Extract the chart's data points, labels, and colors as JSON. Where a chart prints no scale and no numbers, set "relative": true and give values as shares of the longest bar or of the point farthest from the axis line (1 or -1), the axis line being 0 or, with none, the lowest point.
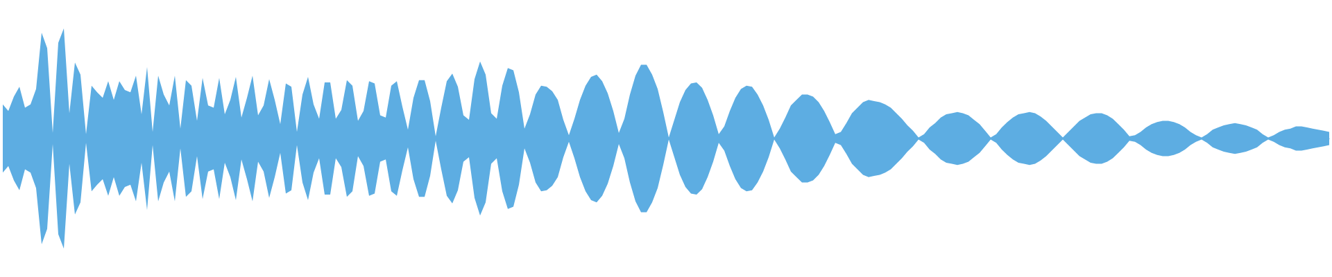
{
  "chart_data": {
    "type": "area",
    "relative": true,
    "categories": [
      null,
      null,
      null,
      null,
      null,
      null,
      null,
      null,
      null,
      null,
      null,
      null,
      null,
      null,
      null,
      null,
      null,
      null,
      null,
      null,
      null,
      null,
      null,
      null,
      null,
      null,
      null,
      null,
      null,
      null,
      null,
      null,
      null,
      null,
      null,
      null,
      null,
      null,
      null,
      null,
      null,
      null,
      null,
      null,
      null,
      null,
      null,
      null,
      null,
      null,
      null,
      null,
      null,
      null,
      null,
      null,
      null,
      null,
      null,
      null,
      null,
      null,
      null,
      null,
      null,
      null,
      null,
      null,
      null,
      null,
      null,
      null,
      null,
      null,
      null,
      null,
      null,
      null,
      null,
      null,
      null,
      null,
      null,
      null,
      null,
      null,
      null,
      null,
      null,
      null,
      null,
      null,
      null,
      null,
      null,
      null,
      null,
      null,
      null,
      null,
      null,
      null,
      null,
      null,
      null,
      null,
      null,
      null,
      null,
      null,
      null,
      null,
      null,
      null,
      null,
      null,
      null,
      null,
      null,
      null,
      null,
      null,
      null,
      null,
      null,
      null,
      null,
      null,
      null,
      null,
      null,
      null,
      null,
      null,
      null,
      null,
      null,
      null,
      null,
      null,
      null,
      null,
      null,
      null,
      null,
      null,
      null,
      null,
      null,
      null,
      null,
      null,
      null,
      null,
      null,
      null,
      null,
      null,
      null,
      null,
      null,
      null,
      null,
      null,
      null,
      null,
      null,
      null,
      null,
      null,
      null,
      null,
      null,
      null,
      null,
      null,
      null,
      null,
      null,
      null,
      null,
      null,
      null,
      null,
      null,
      null,
      null,
      null,
      null,
      null,
      null,
      null,
      null,
      null,
      null,
      null,
      null,
      null,
      null,
      null,
      null,
      null,
      null,
      null,
      null,
      null,
      null,
      null,
      null,
      null,
      null,
      null,
      null,
      null,
      null,
      null,
      null,
      null,
      null,
      null,
      null,
      null,
      null,
      null,
      null,
      null,
      null,
      null,
      null,
      null,
      null,
      null,
      null,
      null,
      null,
      null,
      null,
      null,
      null,
      null
    ],
    "series": [
      {
        "color": "#5dade2",
        "values": [
          0.31,
          0.25,
          0.38,
          0.47,
          0.28,
          0.31,
          0.45,
          0.96,
          0.82,
          0.05,
          0.87,
          1,
          0.23,
          0.69,
          0.58,
          0.04,
          0.48,
          0.42,
          0.37,
          0.52,
          0.35,
          0.52,
          0.44,
          0.42,
          0.57,
          0.22,
          0.65,
          0.06,
          0.57,
          0.4,
          0.3,
          0.57,
          0.09,
          0.53,
          0.48,
          0.16,
          0.55,
          0.3,
          0.28,
          0.55,
          0.22,
          0.35,
          0.56,
          0.19,
          0.37,
          0.57,
          0.21,
          0.3,
          0.54,
          0.35,
          0.13,
          0.5,
          0.47,
          0.06,
          0.4,
          0.56,
          0.31,
          0.18,
          0.51,
          0.51,
          0.18,
          0.26,
          0.53,
          0.48,
          0.16,
          0.25,
          0.52,
          0.5,
          0.21,
          0.19,
          0.48,
          0.52,
          0.29,
          0.08,
          0.37,
          0.53,
          0.53,
          0.34,
          0.02,
          0.28,
          0.52,
          0.59,
          0.47,
          0.21,
          0.17,
          0.54,
          0.7,
          0.58,
          0.23,
          0.18,
          0.48,
          0.64,
          0.62,
          0.42,
          0.09,
          0.22,
          0.4,
          0.48,
          0.47,
          0.43,
          0.35,
          0.17,
          0.03,
          0.18,
          0.35,
          0.48,
          0.56,
          0.58,
          0.52,
          0.41,
          0.25,
          0.05,
          0.18,
          0.4,
          0.57,
          0.67,
          0.67,
          0.58,
          0.45,
          0.24,
          0.01,
          0.17,
          0.33,
          0.44,
          0.5,
          0.51,
          0.46,
          0.35,
          0.21,
          0.04,
          0.11,
          0.25,
          0.37,
          0.45,
          0.48,
          0.47,
          0.4,
          0.3,
          0.17,
          0.01,
          0.09,
          0.19,
          0.3,
          0.35,
          0.4,
          0.4,
          0.38,
          0.33,
          0.25,
          0.15,
          0.04,
          0.06,
          0.14,
          0.23,
          0.28,
          0.33,
          0.35,
          0.34,
          0.33,
          0.31,
          0.28,
          0.23,
          0.18,
          0.12,
          0.07,
          0.01,
          0.04,
          0.1,
          0.14,
          0.19,
          0.22,
          0.23,
          0.24,
          0.23,
          0.21,
          0.17,
          0.13,
          0.07,
          0.01,
          0.04,
          0.1,
          0.15,
          0.19,
          0.22,
          0.23,
          0.24,
          0.23,
          0.2,
          0.16,
          0.11,
          0.06,
          0.01,
          0.06,
          0.11,
          0.16,
          0.19,
          0.22,
          0.23,
          0.23,
          0.21,
          0.18,
          0.13,
          0.08,
          0.02,
          0.03,
          0.06,
          0.1,
          0.13,
          0.15,
          0.16,
          0.16,
          0.15,
          0.13,
          0.1,
          0.06,
          0.03,
          0.01,
          0.04,
          0.08,
          0.1,
          0.12,
          0.13,
          0.14,
          0.13,
          0.12,
          0.1,
          0.08,
          0.04,
          0.01,
          0.03,
          0.06,
          0.08,
          0.09,
          0.11,
          0.11,
          0.1,
          0.09,
          0.08,
          0.07,
          0.06
        ]
      },
      {
        "color": "#5dade2",
        "values": [
          -0.31,
          -0.25,
          -0.38,
          -0.47,
          -0.28,
          -0.31,
          -0.45,
          -0.96,
          -0.82,
          -0.05,
          -0.87,
          -1,
          -0.23,
          -0.69,
          -0.58,
          -0.04,
          -0.48,
          -0.42,
          -0.37,
          -0.52,
          -0.35,
          -0.52,
          -0.44,
          -0.42,
          -0.57,
          -0.22,
          -0.65,
          -0.06,
          -0.57,
          -0.4,
          -0.3,
          -0.57,
          -0.09,
          -0.53,
          -0.48,
          -0.16,
          -0.55,
          -0.3,
          -0.28,
          -0.55,
          -0.22,
          -0.35,
          -0.56,
          -0.19,
          -0.37,
          -0.57,
          -0.21,
          -0.3,
          -0.54,
          -0.35,
          -0.13,
          -0.5,
          -0.47,
          -0.06,
          -0.4,
          -0.56,
          -0.31,
          -0.18,
          -0.51,
          -0.51,
          -0.18,
          -0.26,
          -0.53,
          -0.48,
          -0.16,
          -0.25,
          -0.52,
          -0.5,
          -0.21,
          -0.19,
          -0.48,
          -0.52,
          -0.29,
          -0.08,
          -0.37,
          -0.53,
          -0.53,
          -0.34,
          -0.02,
          -0.28,
          -0.52,
          -0.59,
          -0.47,
          -0.21,
          -0.17,
          -0.54,
          -0.7,
          -0.58,
          -0.23,
          -0.18,
          -0.48,
          -0.64,
          -0.62,
          -0.42,
          -0.09,
          -0.22,
          -0.4,
          -0.48,
          -0.47,
          -0.43,
          -0.35,
          -0.17,
          -0.03,
          -0.18,
          -0.35,
          -0.48,
          -0.56,
          -0.58,
          -0.52,
          -0.41,
          -0.25,
          -0.05,
          -0.18,
          -0.4,
          -0.57,
          -0.67,
          -0.67,
          -0.58,
          -0.45,
          -0.24,
          -0.01,
          -0.17,
          -0.33,
          -0.44,
          -0.5,
          -0.51,
          -0.46,
          -0.35,
          -0.21,
          -0.04,
          -0.11,
          -0.25,
          -0.37,
          -0.45,
          -0.48,
          -0.47,
          -0.4,
          -0.3,
          -0.17,
          -0.01,
          -0.09,
          -0.19,
          -0.3,
          -0.35,
          -0.4,
          -0.4,
          -0.38,
          -0.33,
          -0.25,
          -0.15,
          -0.04,
          -0.06,
          -0.14,
          -0.23,
          -0.28,
          -0.33,
          -0.35,
          -0.34,
          -0.33,
          -0.31,
          -0.28,
          -0.23,
          -0.18,
          -0.12,
          -0.07,
          -0.01,
          -0.04,
          -0.1,
          -0.14,
          -0.19,
          -0.22,
          -0.23,
          -0.24,
          -0.23,
          -0.21,
          -0.17,
          -0.13,
          -0.07,
          -0.01,
          -0.04,
          -0.1,
          -0.15,
          -0.19,
          -0.22,
          -0.23,
          -0.24,
          -0.23,
          -0.2,
          -0.16,
          -0.11,
          -0.06,
          -0.01,
          -0.06,
          -0.11,
          -0.16,
          -0.19,
          -0.22,
          -0.23,
          -0.23,
          -0.21,
          -0.18,
          -0.13,
          -0.08,
          -0.02,
          -0.03,
          -0.06,
          -0.1,
          -0.13,
          -0.15,
          -0.16,
          -0.16,
          -0.15,
          -0.13,
          -0.1,
          -0.06,
          -0.03,
          -0.01,
          -0.04,
          -0.08,
          -0.1,
          -0.12,
          -0.13,
          -0.14,
          -0.13,
          -0.12,
          -0.1,
          -0.08,
          -0.04,
          -0.01,
          -0.03,
          -0.06,
          -0.08,
          -0.09,
          -0.11,
          -0.11,
          -0.1,
          -0.09,
          -0.08,
          -0.07,
          -0.06
        ]
      }
    ]
  }
}
